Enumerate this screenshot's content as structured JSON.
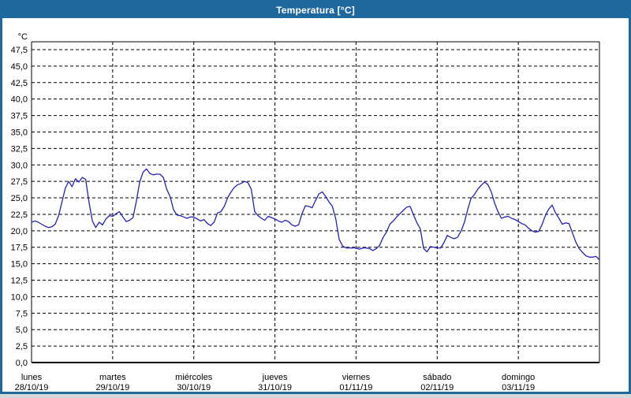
{
  "window": {
    "title": "Temperatura [°C]"
  },
  "colors": {
    "frame_blue": "#1e689e",
    "title_text": "#ffffff",
    "background": "#ffffff",
    "line_blue": "#2121b8",
    "grid_black": "#000000",
    "label_black": "#000000"
  },
  "chart_data": {
    "type": "line",
    "title": "Temperatura [°C]",
    "ylabel": "°C",
    "ylim": [
      0,
      47.5
    ],
    "ytick_step": 2.5,
    "ytick_labels": [
      "0,0",
      "2,5",
      "5,0",
      "7,5",
      "10,0",
      "12,5",
      "15,0",
      "17,5",
      "20,0",
      "22,5",
      "25,0",
      "27,5",
      "30,0",
      "32,5",
      "35,0",
      "37,5",
      "40,0",
      "42,5",
      "45,0",
      "47,5"
    ],
    "grid": true,
    "legend": false,
    "x_unit": "hours",
    "x_step_hours": 1,
    "days": [
      {
        "name": "lunes",
        "date": "28/10/19"
      },
      {
        "name": "martes",
        "date": "29/10/19"
      },
      {
        "name": "miércoles",
        "date": "30/10/19"
      },
      {
        "name": "jueves",
        "date": "31/10/19"
      },
      {
        "name": "viernes",
        "date": "01/11/19"
      },
      {
        "name": "sábado",
        "date": "02/11/19"
      },
      {
        "name": "domingo",
        "date": "03/11/19"
      }
    ],
    "series": [
      {
        "name": "Temperatura [°C]",
        "values": [
          21.3,
          21.5,
          21.3,
          21.0,
          20.7,
          20.5,
          20.6,
          21.0,
          22.3,
          24.4,
          26.5,
          27.5,
          26.7,
          27.9,
          27.4,
          28.1,
          27.8,
          24.3,
          21.5,
          20.5,
          21.3,
          20.9,
          21.8,
          22.3,
          22.2,
          22.6,
          22.9,
          22.1,
          21.4,
          21.6,
          22.0,
          24.5,
          27.4,
          28.9,
          29.4,
          28.7,
          28.5,
          28.6,
          28.6,
          28.1,
          26.3,
          25.2,
          23.2,
          22.4,
          22.3,
          22.1,
          21.9,
          22.1,
          22.1,
          21.8,
          21.5,
          21.7,
          21.1,
          20.8,
          21.3,
          22.7,
          22.9,
          23.7,
          25.0,
          25.9,
          26.6,
          27.0,
          27.2,
          27.5,
          27.3,
          26.3,
          22.9,
          22.3,
          21.9,
          21.6,
          22.2,
          22.0,
          21.8,
          21.5,
          21.3,
          21.6,
          21.4,
          20.9,
          20.7,
          20.9,
          22.6,
          23.8,
          23.7,
          23.5,
          24.6,
          25.6,
          25.9,
          25.2,
          24.4,
          23.7,
          21.8,
          18.7,
          17.7,
          17.4,
          17.4,
          17.4,
          17.4,
          17.2,
          17.4,
          17.4,
          17.3,
          17.0,
          17.3,
          17.8,
          19.0,
          19.8,
          21.0,
          21.5,
          22.1,
          22.6,
          23.1,
          23.6,
          23.7,
          22.4,
          21.2,
          20.3,
          17.3,
          16.8,
          17.6,
          17.5,
          17.4,
          17.4,
          18.2,
          19.3,
          19.0,
          18.8,
          19.0,
          19.9,
          21.2,
          23.2,
          24.9,
          25.5,
          26.3,
          26.9,
          27.4,
          27.0,
          25.9,
          24.2,
          22.9,
          21.9,
          22.1,
          22.2,
          21.9,
          21.7,
          21.4,
          21.1,
          20.9,
          20.4,
          20.0,
          19.8,
          19.9,
          20.9,
          22.3,
          23.3,
          23.9,
          22.7,
          21.9,
          21.0,
          21.2,
          21.1,
          19.7,
          18.3,
          17.3,
          16.7,
          16.2,
          16.0,
          16.0,
          16.1,
          15.6
        ]
      }
    ]
  }
}
